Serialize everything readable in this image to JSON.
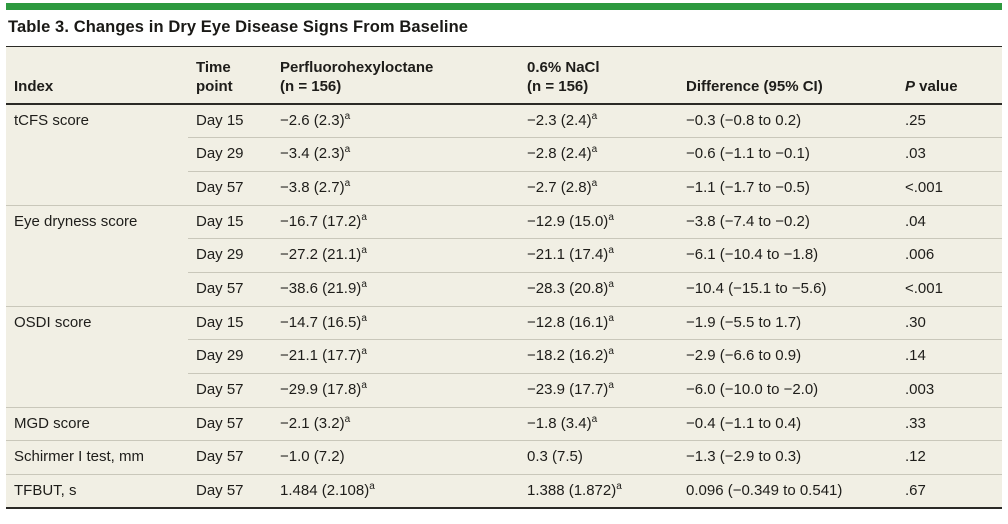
{
  "figure": {
    "accent_color": "#2e9a3f",
    "table_background": "#f1efe4",
    "title": "Table 3. Changes in Dry Eye Disease Signs From Baseline",
    "columns": {
      "index": {
        "lines": [
          "Index"
        ]
      },
      "time": {
        "lines": [
          "Time",
          "point"
        ]
      },
      "pfho": {
        "lines": [
          "Perfluorohexyloctane",
          "(n = 156)"
        ]
      },
      "nacl": {
        "lines": [
          "0.6% NaCl",
          "(n = 156)"
        ]
      },
      "diff": {
        "lines": [
          "Difference (95% CI)"
        ]
      },
      "p": {
        "italic": "P",
        "rest": " value"
      }
    },
    "footnote_marker": "a",
    "rows": [
      {
        "index": "tCFS score",
        "time": "Day 15",
        "pfho": "−2.6 (2.3)",
        "pfho_sup": "a",
        "nacl": "−2.3 (2.4)",
        "nacl_sup": "a",
        "diff": "−0.3 (−0.8 to 0.2)",
        "p": ".25"
      },
      {
        "index": "",
        "time": "Day 29",
        "pfho": "−3.4 (2.3)",
        "pfho_sup": "a",
        "nacl": "−2.8 (2.4)",
        "nacl_sup": "a",
        "diff": "−0.6 (−1.1 to −0.1)",
        "p": ".03"
      },
      {
        "index": "",
        "time": "Day 57",
        "pfho": "−3.8 (2.7)",
        "pfho_sup": "a",
        "nacl": "−2.7 (2.8)",
        "nacl_sup": "a",
        "diff": "−1.1 (−1.7 to −0.5)",
        "p": "<.001"
      },
      {
        "index": "Eye dryness score",
        "time": "Day 15",
        "pfho": "−16.7 (17.2)",
        "pfho_sup": "a",
        "nacl": "−12.9 (15.0)",
        "nacl_sup": "a",
        "diff": "−3.8 (−7.4 to −0.2)",
        "p": ".04"
      },
      {
        "index": "",
        "time": "Day 29",
        "pfho": "−27.2 (21.1)",
        "pfho_sup": "a",
        "nacl": "−21.1 (17.4)",
        "nacl_sup": "a",
        "diff": "−6.1 (−10.4 to −1.8)",
        "p": ".006"
      },
      {
        "index": "",
        "time": "Day 57",
        "pfho": "−38.6 (21.9)",
        "pfho_sup": "a",
        "nacl": "−28.3 (20.8)",
        "nacl_sup": "a",
        "diff": "−10.4 (−15.1 to −5.6)",
        "p": "<.001"
      },
      {
        "index": "OSDI score",
        "time": "Day 15",
        "pfho": "−14.7 (16.5)",
        "pfho_sup": "a",
        "nacl": "−12.8 (16.1)",
        "nacl_sup": "a",
        "diff": "−1.9 (−5.5 to 1.7)",
        "p": ".30"
      },
      {
        "index": "",
        "time": "Day 29",
        "pfho": "−21.1 (17.7)",
        "pfho_sup": "a",
        "nacl": "−18.2 (16.2)",
        "nacl_sup": "a",
        "diff": "−2.9 (−6.6 to 0.9)",
        "p": ".14"
      },
      {
        "index": "",
        "time": "Day 57",
        "pfho": "−29.9 (17.8)",
        "pfho_sup": "a",
        "nacl": "−23.9 (17.7)",
        "nacl_sup": "a",
        "diff": "−6.0 (−10.0 to −2.0)",
        "p": ".003"
      },
      {
        "index": "MGD score",
        "time": "Day 57",
        "pfho": "−2.1 (3.2)",
        "pfho_sup": "a",
        "nacl": "−1.8 (3.4)",
        "nacl_sup": "a",
        "diff": "−0.4 (−1.1 to 0.4)",
        "p": ".33"
      },
      {
        "index": "Schirmer I test, mm",
        "time": "Day 57",
        "pfho": "−1.0 (7.2)",
        "pfho_sup": "",
        "nacl": "0.3 (7.5)",
        "nacl_sup": "",
        "diff": "−1.3 (−2.9 to 0.3)",
        "p": ".12"
      },
      {
        "index": "TFBUT, s",
        "time": "Day 57",
        "pfho": "1.484 (2.108)",
        "pfho_sup": "a",
        "nacl": "1.388 (1.872)",
        "nacl_sup": "a",
        "diff": "0.096 (−0.349 to 0.541)",
        "p": ".67"
      }
    ]
  }
}
